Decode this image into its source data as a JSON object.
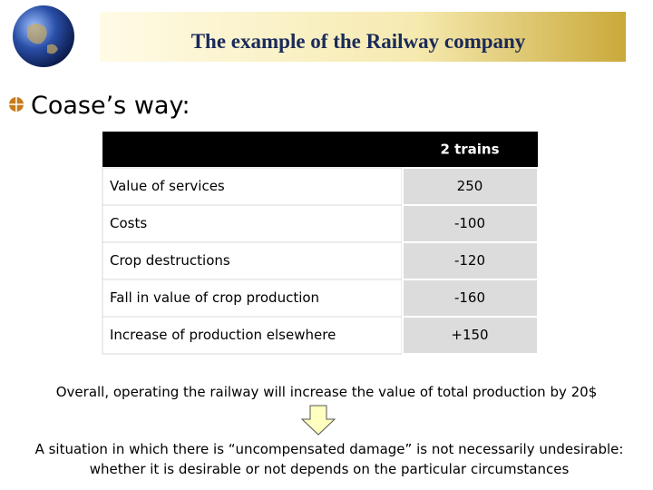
{
  "header": {
    "title": "The example of the Railway company"
  },
  "heading": "Coase’s way:",
  "table": {
    "columns": [
      "",
      "2 trains"
    ],
    "rows": [
      [
        "Value of services",
        "250"
      ],
      [
        "Costs",
        "-100"
      ],
      [
        "Crop destructions",
        "-120"
      ],
      [
        "Fall in value of crop production",
        "-160"
      ],
      [
        "Increase of production elsewhere",
        "+150"
      ]
    ]
  },
  "conclusion": "Overall, operating the railway will increase the value of total production by 20$",
  "note": {
    "lines": [
      "A situation in which there is “uncompensated damage” is not necessarily undesirable:",
      "whether it is desirable or not depends on the particular circumstances"
    ]
  }
}
